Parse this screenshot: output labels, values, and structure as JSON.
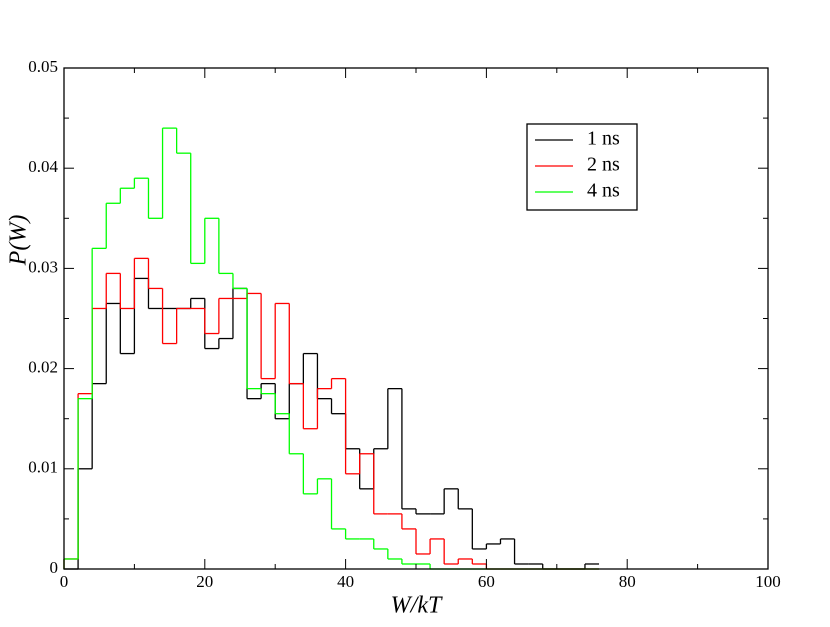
{
  "chart_data": {
    "type": "histogram",
    "xlabel": "W/kT",
    "ylabel": "P(W)",
    "xlim": [
      0,
      100
    ],
    "ylim": [
      0,
      0.05
    ],
    "xticks": [
      0,
      20,
      40,
      60,
      80,
      100
    ],
    "yticks": [
      0,
      0.01,
      0.02,
      0.03,
      0.04,
      0.05
    ],
    "legend": "upper right",
    "bins": [
      0,
      2,
      4,
      6,
      8,
      10,
      12,
      14,
      16,
      18,
      20,
      22,
      24,
      26,
      28,
      30,
      32,
      34,
      36,
      38,
      40,
      42,
      44,
      46,
      48,
      50,
      52,
      54,
      56,
      58,
      60,
      62,
      64,
      66,
      68,
      70,
      72,
      74,
      76
    ],
    "series": [
      {
        "name": "1 ns",
        "color": "#000000",
        "values": [
          0,
          0.01,
          0.0185,
          0.0265,
          0.0215,
          0.029,
          0.026,
          0.026,
          0.026,
          0.027,
          0.022,
          0.023,
          0.028,
          0.017,
          0.0185,
          0.015,
          0.0185,
          0.0215,
          0.017,
          0.0155,
          0.012,
          0.008,
          0.012,
          0.018,
          0.006,
          0.0055,
          0.0055,
          0.008,
          0.006,
          0.002,
          0.0025,
          0.003,
          0.0005,
          0.0005,
          0,
          0,
          0,
          0.0005
        ]
      },
      {
        "name": "2 ns",
        "color": "#ff0000",
        "values": [
          0.001,
          0.0175,
          0.026,
          0.0295,
          0.026,
          0.031,
          0.028,
          0.0225,
          0.026,
          0.026,
          0.0235,
          0.027,
          0.027,
          0.0275,
          0.019,
          0.0265,
          0.0185,
          0.014,
          0.018,
          0.019,
          0.0095,
          0.0115,
          0.0055,
          0.0055,
          0.004,
          0.0015,
          0.003,
          0.0005,
          0.001,
          0.0005,
          0,
          0,
          0,
          0,
          0,
          0,
          0,
          0
        ]
      },
      {
        "name": "4 ns",
        "color": "#00ff00",
        "values": [
          0.001,
          0.017,
          0.032,
          0.0365,
          0.038,
          0.039,
          0.035,
          0.044,
          0.0415,
          0.0305,
          0.035,
          0.0295,
          0.028,
          0.018,
          0.0175,
          0.0155,
          0.0115,
          0.0075,
          0.009,
          0.004,
          0.003,
          0.003,
          0.002,
          0.001,
          0.0005,
          0.0005,
          0,
          0,
          0,
          0,
          0,
          0,
          0,
          0,
          0,
          0,
          0,
          0
        ]
      }
    ]
  }
}
